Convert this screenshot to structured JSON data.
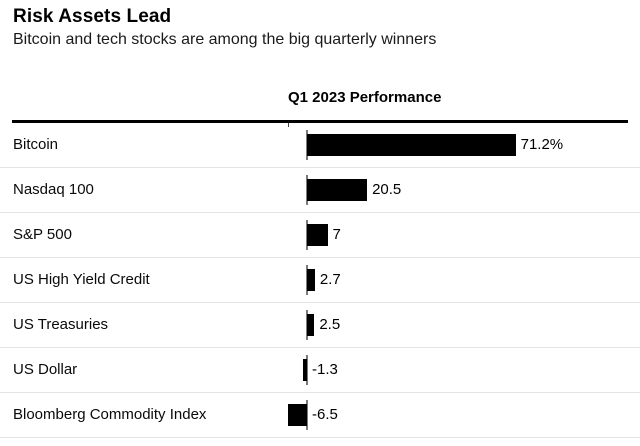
{
  "header": {
    "title": "Risk Assets Lead",
    "subtitle": "Bitcoin and tech stocks are among the big quarterly winners"
  },
  "chart_data": {
    "type": "bar",
    "orientation": "horizontal",
    "title": "Risk Assets Lead",
    "subtitle": "Bitcoin and tech stocks are among the big quarterly winners",
    "axis_header": "Q1 2023 Performance",
    "categories": [
      "Bitcoin",
      "Nasdaq 100",
      "S&P 500",
      "US High Yield Credit",
      "US Treasuries",
      "US Dollar",
      "Bloomberg Commodity Index"
    ],
    "values": [
      71.2,
      20.5,
      7,
      2.7,
      2.5,
      -1.3,
      -6.5
    ],
    "value_labels": [
      "71.2%",
      "20.5",
      "7",
      "2.7",
      "2.5",
      "-1.3",
      "-6.5"
    ],
    "unit": "%",
    "xlim": [
      -6.5,
      110
    ],
    "grid": false,
    "legend": "none",
    "bar_color": "#000000"
  },
  "colors": {
    "background": "#ffffff",
    "bar": "#000000",
    "axis_line": "#000000",
    "row_separator": "#e4e4e4",
    "zero_tick": "#7a7a7a",
    "text": "#000000"
  }
}
